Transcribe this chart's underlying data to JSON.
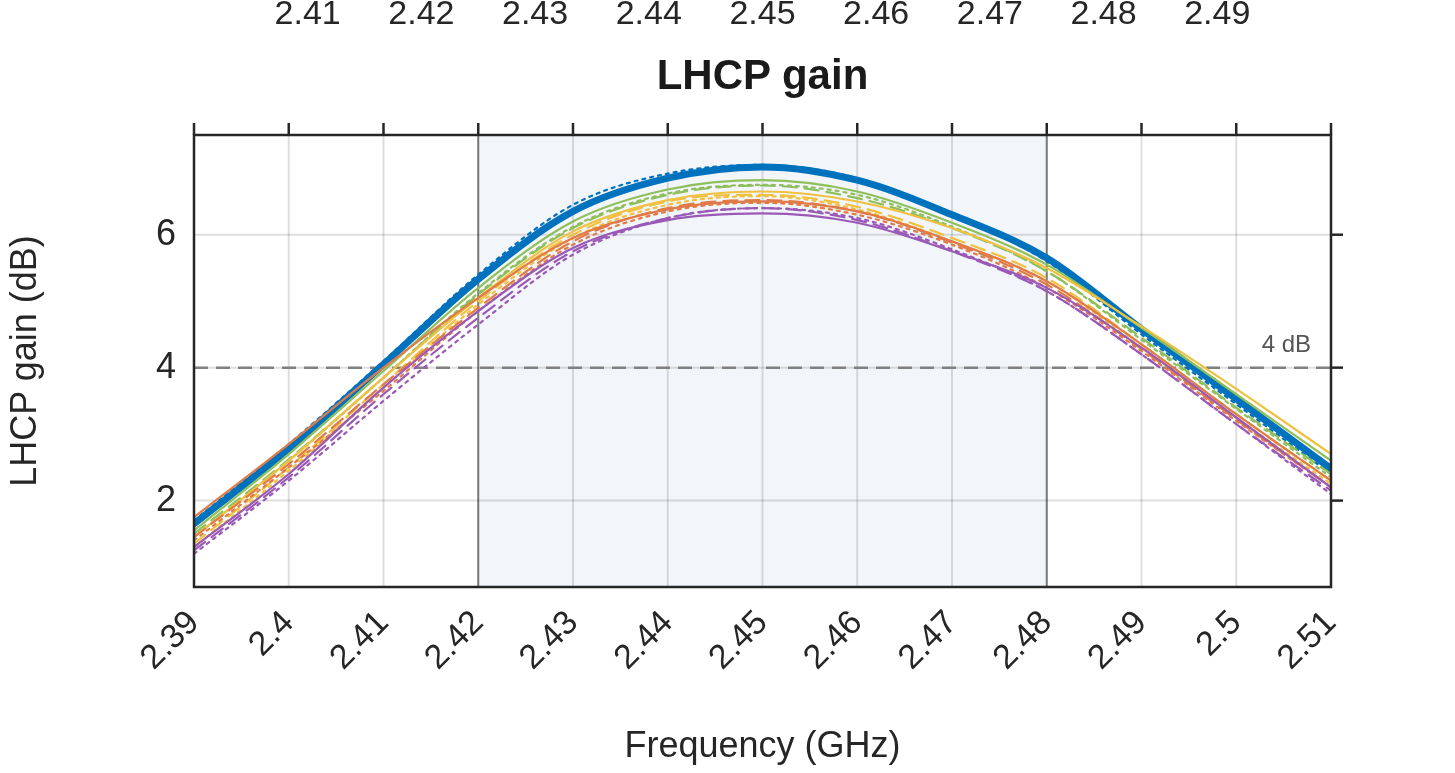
{
  "chart_data": {
    "type": "line",
    "title": "LHCP gain",
    "xlabel": "Frequency (GHz)",
    "ylabel": "LHCP gain (dB)",
    "x": [
      2.39,
      2.4,
      2.41,
      2.42,
      2.43,
      2.44,
      2.45,
      2.46,
      2.47,
      2.48,
      2.49,
      2.5,
      2.51
    ],
    "xlim": [
      2.39,
      2.51
    ],
    "xticks": [
      2.39,
      2.4,
      2.41,
      2.42,
      2.43,
      2.44,
      2.45,
      2.46,
      2.47,
      2.48,
      2.49,
      2.5,
      2.51
    ],
    "x2lim": [
      2.4,
      2.5
    ],
    "x2ticks": [
      2.41,
      2.42,
      2.43,
      2.44,
      2.45,
      2.46,
      2.47,
      2.48,
      2.49
    ],
    "ylim": [
      0.7,
      7.5
    ],
    "yticks": [
      2,
      4,
      6
    ],
    "grid": true,
    "legend": false,
    "marker": "none",
    "bands": [
      {
        "axis": "x",
        "from": 2.42,
        "to": 2.48,
        "color": "#f2f6fb"
      }
    ],
    "ref_lines": [
      {
        "axis": "y",
        "value": 4,
        "label": "4 dB",
        "color": "#808080",
        "line_style": "dashed"
      }
    ],
    "series": [
      {
        "color": "#0072bd",
        "line_style": "solid",
        "values": [
          1.65,
          2.78,
          4.05,
          5.33,
          6.35,
          6.85,
          7.02,
          6.82,
          6.3,
          5.65,
          4.58,
          3.53,
          2.48
        ]
      },
      {
        "color": "#0072bd",
        "line_style": "dotted",
        "values": [
          1.7,
          2.85,
          4.1,
          5.4,
          6.45,
          6.92,
          7.05,
          6.85,
          6.3,
          5.6,
          4.5,
          3.45,
          2.4
        ]
      },
      {
        "color": "#8fbf5a",
        "line_style": "solid",
        "values": [
          1.55,
          2.7,
          3.95,
          5.2,
          6.2,
          6.68,
          6.82,
          6.65,
          6.18,
          5.55,
          4.6,
          3.6,
          2.6
        ]
      },
      {
        "color": "#8fbf5a",
        "line_style": "dashed",
        "values": [
          1.5,
          2.62,
          3.85,
          5.1,
          6.1,
          6.6,
          6.74,
          6.55,
          6.1,
          5.45,
          4.45,
          3.4,
          2.4
        ]
      },
      {
        "color": "#8fbf5a",
        "line_style": "dotted",
        "values": [
          1.45,
          2.6,
          3.85,
          5.12,
          6.12,
          6.62,
          6.75,
          6.6,
          6.12,
          5.45,
          4.42,
          3.38,
          2.35
        ]
      },
      {
        "color": "#f0c040",
        "line_style": "solid",
        "values": [
          1.45,
          2.6,
          3.85,
          5.05,
          6.05,
          6.52,
          6.65,
          6.5,
          6.1,
          5.5,
          4.62,
          3.68,
          2.7
        ]
      },
      {
        "color": "#f0c040",
        "line_style": "dashed",
        "values": [
          1.35,
          2.5,
          3.75,
          5.0,
          6.0,
          6.5,
          6.6,
          6.42,
          5.95,
          5.35,
          4.35,
          3.3,
          2.3
        ]
      },
      {
        "color": "#f0c040",
        "line_style": "dotted",
        "values": [
          1.3,
          2.45,
          3.7,
          4.95,
          5.95,
          6.45,
          6.58,
          6.38,
          5.9,
          5.3,
          4.3,
          3.25,
          2.25
        ]
      },
      {
        "color": "#e07b47",
        "line_style": "solid",
        "values": [
          1.75,
          2.85,
          4.0,
          5.05,
          5.95,
          6.38,
          6.5,
          6.35,
          5.9,
          5.3,
          4.35,
          3.3,
          2.3
        ]
      },
      {
        "color": "#e07b47",
        "line_style": "dashed",
        "values": [
          1.45,
          2.55,
          3.75,
          4.9,
          5.9,
          6.4,
          6.52,
          6.35,
          5.88,
          5.25,
          4.28,
          3.22,
          2.2
        ]
      },
      {
        "color": "#e07b47",
        "line_style": "dotted",
        "values": [
          1.4,
          2.5,
          3.65,
          4.85,
          5.85,
          6.35,
          6.48,
          6.3,
          5.85,
          5.2,
          4.25,
          3.2,
          2.2
        ]
      },
      {
        "color": "#9b59b6",
        "line_style": "solid",
        "values": [
          1.3,
          2.4,
          3.7,
          4.85,
          5.8,
          6.22,
          6.32,
          6.18,
          5.75,
          5.2,
          4.3,
          3.25,
          2.2
        ]
      },
      {
        "color": "#9b59b6",
        "line_style": "dashed",
        "values": [
          1.25,
          2.35,
          3.6,
          4.75,
          5.75,
          6.25,
          6.4,
          6.22,
          5.75,
          5.15,
          4.2,
          3.15,
          2.15
        ]
      },
      {
        "color": "#9b59b6",
        "line_style": "dotted",
        "values": [
          1.2,
          2.3,
          3.5,
          4.65,
          5.7,
          6.25,
          6.4,
          6.25,
          5.78,
          5.15,
          4.2,
          3.15,
          2.1
        ]
      }
    ]
  }
}
